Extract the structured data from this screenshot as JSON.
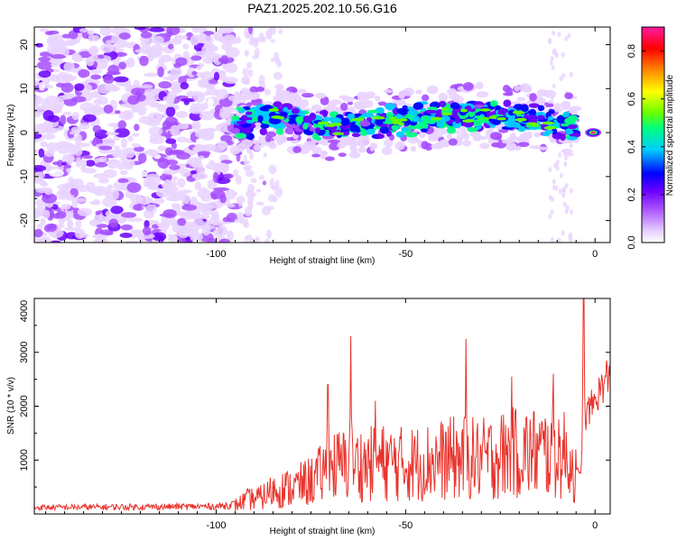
{
  "title": "PAZ1.2025.202.10.56.G16",
  "colors": {
    "snr_line": "#e8332c",
    "spectrogram_palette": [
      "#ffffff",
      "#e9d3ff",
      "#a64dff",
      "#6a00ff",
      "#0000ff",
      "#00ccff",
      "#00ff7f",
      "#66ff00",
      "#ffff00",
      "#ff8800",
      "#ff0000",
      "#ff1aa0"
    ]
  },
  "chart_data": [
    {
      "type": "heatmap",
      "xlabel": "Height of straight line (km)",
      "ylabel": "Frequency (Hz)",
      "xlim": [
        -148,
        4
      ],
      "ylim": [
        -25,
        24
      ],
      "xticks": [
        -100,
        -50,
        0
      ],
      "yticks": [
        -20,
        -10,
        0,
        10,
        20
      ],
      "colorbar": {
        "label": "Normalized spectral amplitude",
        "range": [
          0,
          0.9
        ],
        "ticks": [
          "0.0",
          "0.2",
          "0.4",
          "0.6",
          "0.8"
        ]
      },
      "regions": [
        {
          "x_range": [
            -148,
            -95
          ],
          "freq_range": [
            -25,
            24
          ],
          "amplitude": "0.05–0.2 (broadband noise)"
        },
        {
          "x_range": [
            -95,
            -5
          ],
          "freq_center": [
            2,
            4,
            1,
            2,
            3,
            4,
            4,
            3,
            1
          ],
          "x_at": [
            -95,
            -85,
            -70,
            -60,
            -50,
            -40,
            -30,
            -15,
            -5
          ],
          "freq_halfwidth": 4,
          "amplitude": "0.2–0.5"
        },
        {
          "x_range": [
            -5,
            4
          ],
          "freq_center": 0,
          "peak_amplitude": 0.9
        }
      ]
    },
    {
      "type": "line",
      "xlabel": "Height of straight line (km)",
      "ylabel": "SNR (10 * v/v)",
      "xlim": [
        -148,
        4
      ],
      "ylim": [
        0,
        4000
      ],
      "xticks": [
        -100,
        -50,
        0
      ],
      "yticks": [
        1000,
        2000,
        3000,
        4000
      ],
      "envelope_x": [
        -148,
        -100,
        -95,
        -92,
        -88,
        -85,
        -80,
        -75,
        -72,
        -70,
        -65,
        -60,
        -55,
        -50,
        -45,
        -40,
        -35,
        -30,
        -25,
        -20,
        -15,
        -10,
        -7,
        -5,
        -4,
        -3,
        -2,
        0,
        2,
        4
      ],
      "envelope_y": [
        120,
        140,
        180,
        300,
        350,
        500,
        550,
        700,
        850,
        1000,
        1050,
        1050,
        1100,
        1050,
        1100,
        1150,
        1200,
        1150,
        1250,
        1300,
        1300,
        1300,
        1200,
        800,
        700,
        1500,
        1900,
        2100,
        2400,
        2500
      ],
      "peaks": [
        {
          "x": -70.5,
          "y": 2400
        },
        {
          "x": -64.5,
          "y": 3300
        },
        {
          "x": -58,
          "y": 2100
        },
        {
          "x": -34,
          "y": 3250
        },
        {
          "x": -22,
          "y": 2550
        },
        {
          "x": -11,
          "y": 2600
        },
        {
          "x": -3,
          "y": 4000
        },
        {
          "x": 3,
          "y": 2850
        }
      ]
    }
  ]
}
